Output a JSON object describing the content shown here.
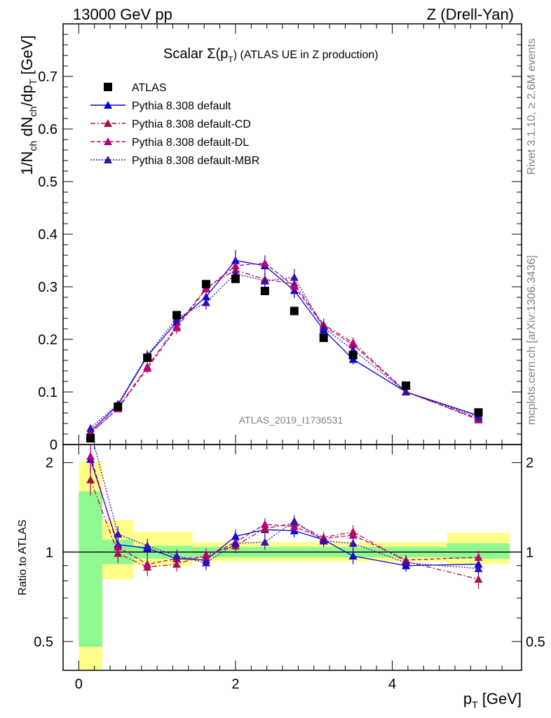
{
  "header": {
    "left": "13000 GeV pp",
    "right": "Z (Drell-Yan)"
  },
  "side_text": {
    "rivet": "Rivet 3.1.10, ≥ 2.6M events",
    "site": "mcplots.cern.ch [arXiv:1306.3436]"
  },
  "chart_data": [
    {
      "panel": "main",
      "type": "scatter",
      "title_parts": {
        "a": "Scalar Σ(p",
        "sub": "T",
        "b": ") (ATLAS UE in Z production)"
      },
      "ylabel_parts": [
        "1/N",
        "ch",
        " dN",
        "ch",
        "/dp",
        "T",
        " [GeV]"
      ],
      "watermark": "ATLAS_2019_I1736531",
      "xlim": [
        -0.2,
        5.65
      ],
      "ylim": [
        0,
        0.8
      ],
      "yticks": [
        0,
        0.1,
        0.2,
        0.3,
        0.4,
        0.5,
        0.6,
        0.7
      ],
      "ytick_labels": [
        "0",
        "0.1",
        "0.2",
        "0.3",
        "0.4",
        "0.5",
        "0.6",
        "0.7"
      ],
      "x": [
        0.15,
        0.5,
        0.875,
        1.25,
        1.625,
        2.0,
        2.375,
        2.75,
        3.125,
        3.5,
        4.175,
        5.1
      ],
      "legend": [
        {
          "label": "ATLAS",
          "color": "#000000",
          "style": "square"
        },
        {
          "label": "Pythia 8.308 default",
          "color": "#0000dd",
          "style": "solid"
        },
        {
          "label": "Pythia 8.308 default-CD",
          "color": "#aa1144",
          "style": "dashdot"
        },
        {
          "label": "Pythia 8.308 default-DL",
          "color": "#bb0077",
          "style": "dashed"
        },
        {
          "label": "Pythia 8.308 default-MBR",
          "color": "#3311aa",
          "style": "dotted"
        }
      ],
      "data_values": [
        0.012,
        0.072,
        0.165,
        0.246,
        0.305,
        0.315,
        0.292,
        0.254,
        0.203,
        0.17,
        0.112,
        0.061
      ],
      "series": [
        {
          "name": "Pythia 8.308 default",
          "values": [
            0.025,
            0.075,
            0.168,
            0.233,
            0.281,
            0.35,
            0.34,
            0.293,
            0.218,
            0.162,
            0.1,
            0.055
          ],
          "err": [
            0.005,
            0.006,
            0.01,
            0.012,
            0.013,
            0.02,
            0.018,
            0.015,
            0.012,
            0.01,
            0.006,
            0.004
          ]
        },
        {
          "name": "Pythia 8.308 default-CD",
          "values": [
            0.021,
            0.07,
            0.148,
            0.225,
            0.298,
            0.332,
            0.314,
            0.306,
            0.228,
            0.194,
            0.101,
            0.047
          ],
          "err": [
            0.005,
            0.006,
            0.01,
            0.012,
            0.013,
            0.015,
            0.015,
            0.014,
            0.012,
            0.01,
            0.006,
            0.004
          ]
        },
        {
          "name": "Pythia 8.308 default-DL",
          "values": [
            0.022,
            0.068,
            0.145,
            0.222,
            0.296,
            0.34,
            0.345,
            0.301,
            0.225,
            0.19,
            0.1,
            0.049
          ],
          "err": [
            0.005,
            0.006,
            0.01,
            0.012,
            0.013,
            0.015,
            0.015,
            0.014,
            0.012,
            0.01,
            0.006,
            0.004
          ]
        },
        {
          "name": "Pythia 8.308 default-MBR",
          "values": [
            0.031,
            0.077,
            0.17,
            0.24,
            0.27,
            0.325,
            0.311,
            0.318,
            0.222,
            0.18,
            0.1,
            0.052
          ],
          "err": [
            0.005,
            0.006,
            0.01,
            0.012,
            0.013,
            0.015,
            0.015,
            0.016,
            0.012,
            0.01,
            0.006,
            0.004
          ]
        }
      ]
    },
    {
      "panel": "ratio",
      "type": "scatter",
      "ylabel": "Ratio to ATLAS",
      "xlabel_parts": [
        "p",
        "T",
        " [GeV]"
      ],
      "xlim": [
        -0.2,
        5.65
      ],
      "ylim_log": [
        0.4,
        2.3
      ],
      "xticks": [
        0,
        2,
        4
      ],
      "xtick_labels": [
        "0",
        "2",
        "4"
      ],
      "yticks": [
        0.5,
        1,
        2
      ],
      "ytick_labels": [
        "0.5",
        "1",
        "2"
      ],
      "bins": [
        [
          0,
          0.3
        ],
        [
          0.3,
          0.7
        ],
        [
          0.7,
          1.05
        ],
        [
          1.05,
          1.45
        ],
        [
          1.45,
          1.8
        ],
        [
          1.8,
          2.2
        ],
        [
          2.2,
          2.55
        ],
        [
          2.55,
          2.95
        ],
        [
          2.95,
          3.3
        ],
        [
          3.3,
          3.7
        ],
        [
          3.7,
          4.7
        ],
        [
          4.7,
          5.5
        ]
      ],
      "band_stat": [
        [
          0.48,
          1.6
        ],
        [
          0.91,
          1.1
        ],
        [
          0.95,
          1.05
        ],
        [
          0.95,
          1.05
        ],
        [
          0.96,
          1.04
        ],
        [
          0.96,
          1.04
        ],
        [
          0.96,
          1.04
        ],
        [
          0.96,
          1.04
        ],
        [
          0.96,
          1.04
        ],
        [
          0.96,
          1.04
        ],
        [
          0.96,
          1.04
        ],
        [
          0.95,
          1.07
        ]
      ],
      "band_total": [
        [
          0.35,
          2.02
        ],
        [
          0.81,
          1.28
        ],
        [
          0.9,
          1.17
        ],
        [
          0.9,
          1.17
        ],
        [
          0.93,
          1.08
        ],
        [
          0.93,
          1.08
        ],
        [
          0.93,
          1.08
        ],
        [
          0.93,
          1.08
        ],
        [
          0.93,
          1.08
        ],
        [
          0.93,
          1.08
        ],
        [
          0.93,
          1.08
        ],
        [
          0.91,
          1.16
        ]
      ],
      "series": [
        {
          "name": "Pythia 8.308 default",
          "values": [
            2.05,
            1.06,
            1.03,
            0.95,
            0.94,
            1.13,
            1.19,
            1.18,
            1.1,
            0.97,
            0.9,
            0.91
          ],
          "err": [
            0.2,
            0.07,
            0.06,
            0.05,
            0.05,
            0.06,
            0.06,
            0.06,
            0.05,
            0.06,
            0.04,
            0.05
          ]
        },
        {
          "name": "Pythia 8.308 default-CD",
          "values": [
            1.75,
            0.99,
            0.89,
            0.91,
            0.98,
            1.05,
            1.2,
            1.25,
            1.12,
            1.17,
            0.93,
            0.81
          ],
          "err": [
            0.2,
            0.07,
            0.06,
            0.05,
            0.05,
            0.06,
            0.06,
            0.06,
            0.05,
            0.06,
            0.04,
            0.06
          ]
        },
        {
          "name": "Pythia 8.308 default-DL",
          "values": [
            2.1,
            1.04,
            0.91,
            0.95,
            0.96,
            1.08,
            1.24,
            1.22,
            1.11,
            1.14,
            0.94,
            0.96
          ],
          "err": [
            0.2,
            0.07,
            0.06,
            0.05,
            0.05,
            0.06,
            0.06,
            0.06,
            0.05,
            0.06,
            0.04,
            0.05
          ]
        },
        {
          "name": "Pythia 8.308 default-MBR",
          "values": [
            2.55,
            1.15,
            1.05,
            0.97,
            0.92,
            1.07,
            1.08,
            1.27,
            1.09,
            1.07,
            0.92,
            0.88
          ],
          "err": [
            0.25,
            0.07,
            0.06,
            0.05,
            0.05,
            0.06,
            0.06,
            0.06,
            0.05,
            0.06,
            0.04,
            0.05
          ]
        }
      ]
    }
  ]
}
